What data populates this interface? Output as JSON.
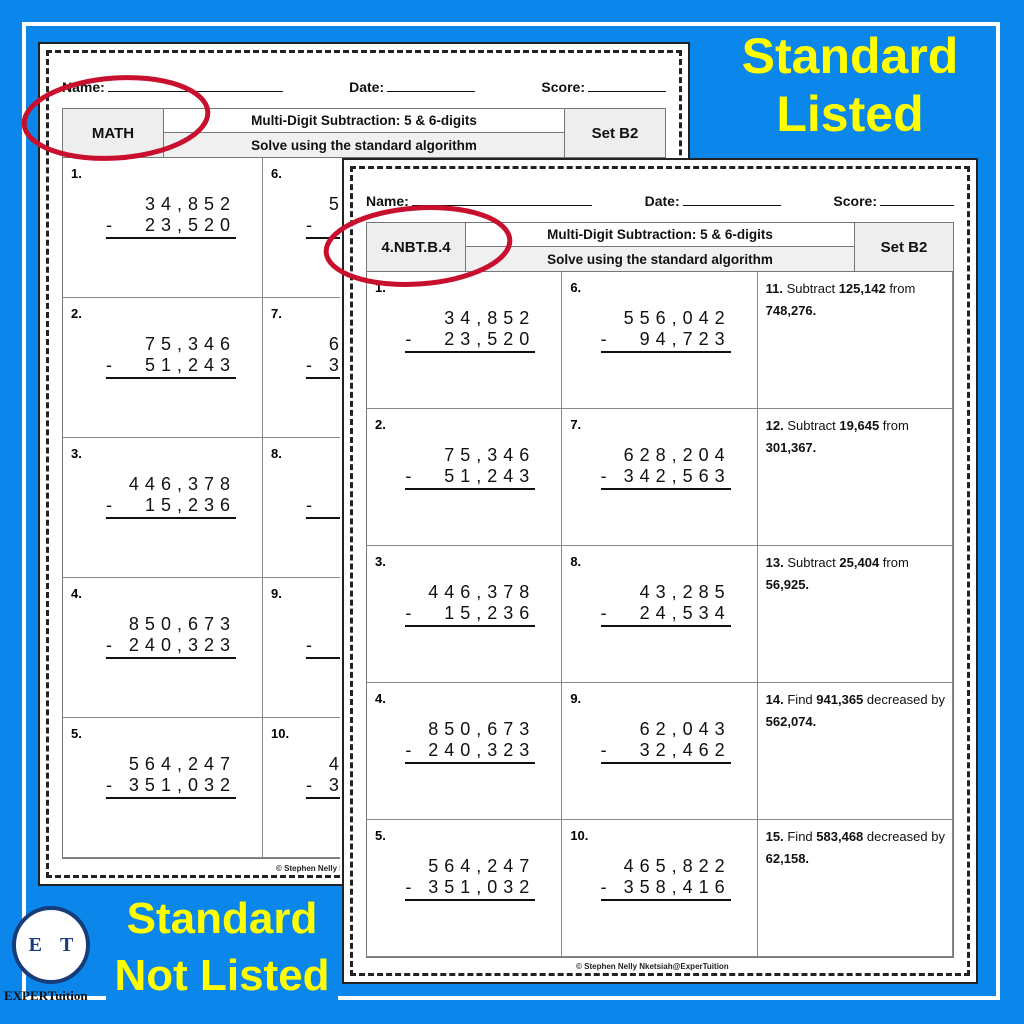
{
  "labels": {
    "top": [
      "Standard",
      "Listed"
    ],
    "bottom": [
      "Standard",
      "Not Listed"
    ]
  },
  "logo": {
    "letters": [
      "E",
      "T"
    ],
    "name": "EXPERTuition"
  },
  "colors": {
    "background": "#0b86ea",
    "label": "#ffff00",
    "highlight_ellipse": "#c8102e"
  },
  "fields": {
    "name": "Name:",
    "date": "Date:",
    "score": "Score:"
  },
  "back_sheet": {
    "standard": "MATH",
    "title": "Multi-Digit Subtraction: 5 & 6-digits",
    "subtitle": "Solve using the standard algorithm",
    "set": "Set B2",
    "footer": "© Stephen Nelly Nketsiah@ExperTuition"
  },
  "front_sheet": {
    "standard": "4.NBT.B.4",
    "title": "Multi-Digit Subtraction: 5 & 6-digits",
    "subtitle": "Solve using the standard algorithm",
    "set": "Set B2",
    "footer": "© Stephen Nelly Nketsiah@ExperTuition"
  },
  "problems": [
    {
      "n": "1.",
      "a": "34,852",
      "b": "23,520"
    },
    {
      "n": "2.",
      "a": "75,346",
      "b": "51,243"
    },
    {
      "n": "3.",
      "a": "446,378",
      "b": "15,236"
    },
    {
      "n": "4.",
      "a": "850,673",
      "b": "240,323"
    },
    {
      "n": "5.",
      "a": "564,247",
      "b": "351,032"
    },
    {
      "n": "6.",
      "a": "556,042",
      "b": "94,723"
    },
    {
      "n": "7.",
      "a": "628,204",
      "b": "342,563"
    },
    {
      "n": "8.",
      "a": "43,285",
      "b": "24,534"
    },
    {
      "n": "9.",
      "a": "62,043",
      "b": "32,462"
    },
    {
      "n": "10.",
      "a": "465,822",
      "b": "358,416"
    }
  ],
  "word_problems": [
    {
      "n": "11.",
      "pre": "Subtract",
      "x": "125,142",
      "mid": "from",
      "y": "748,276."
    },
    {
      "n": "12.",
      "pre": "Subtract",
      "x": "19,645",
      "mid": "from",
      "y": "301,367."
    },
    {
      "n": "13.",
      "pre": "Subtract",
      "x": "25,404",
      "mid": "from",
      "y": "56,925."
    },
    {
      "n": "14.",
      "pre": "Find",
      "x": "941,365",
      "mid": "decreased by",
      "y": "562,074."
    },
    {
      "n": "15.",
      "pre": "Find",
      "x": "583,468",
      "mid": "decreased by",
      "y": "62,158."
    }
  ],
  "minus": "-"
}
